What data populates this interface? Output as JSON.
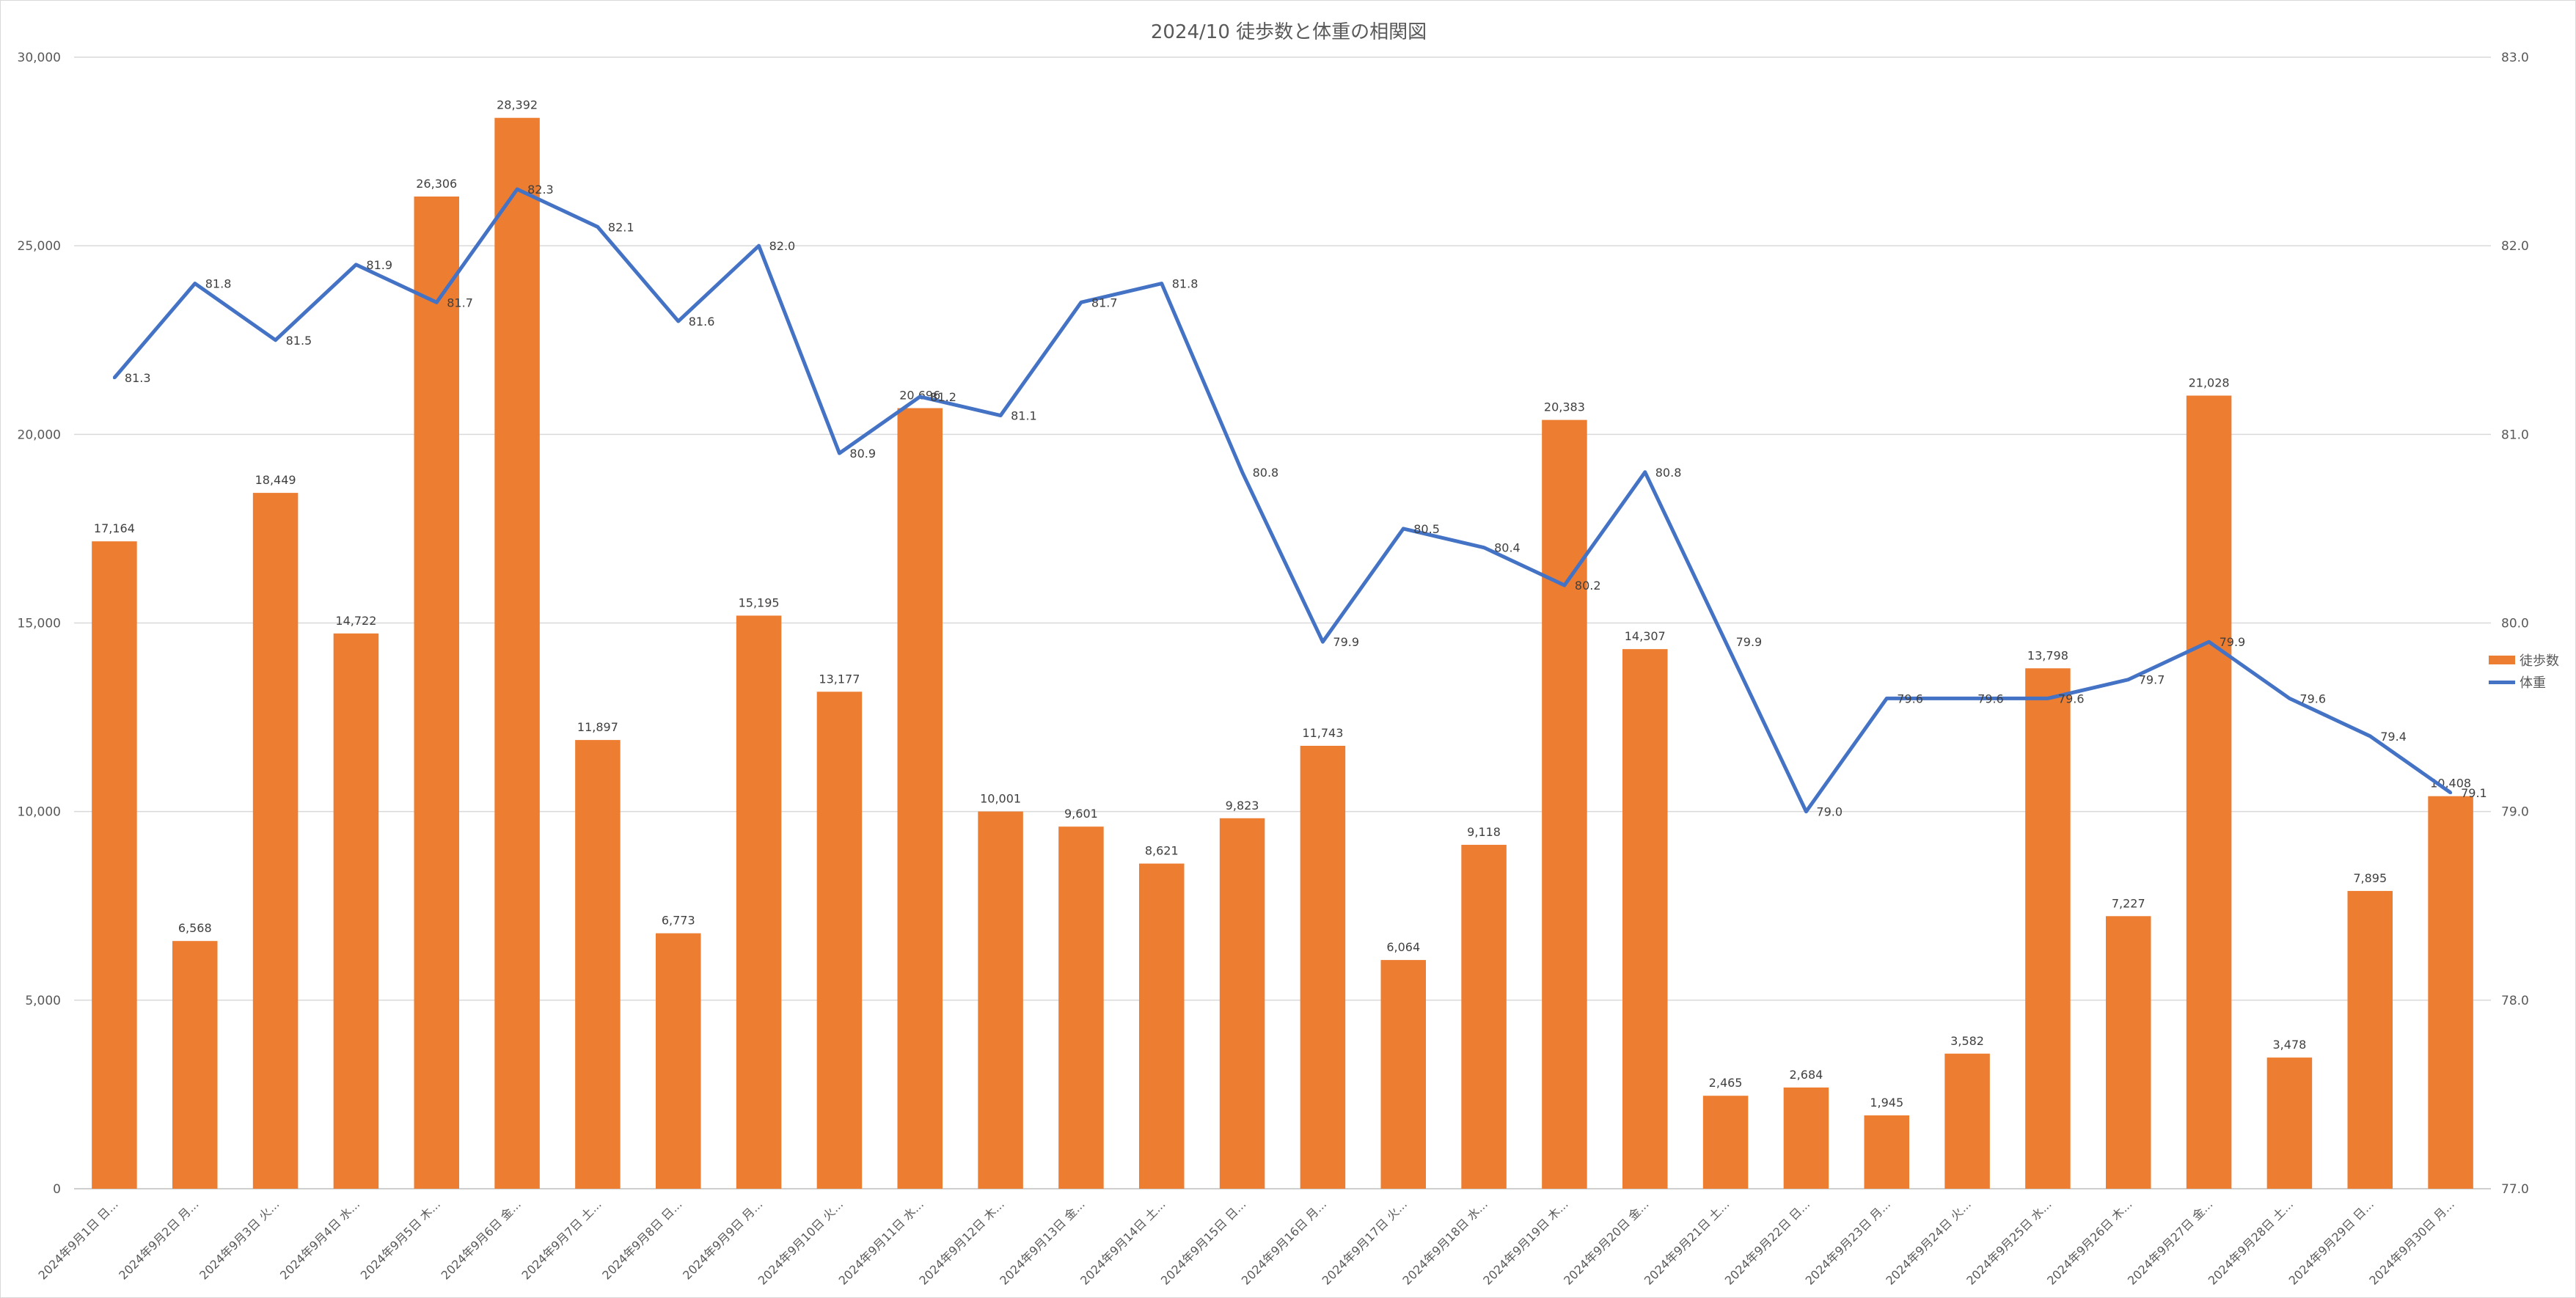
{
  "chart_data": {
    "type": "bar",
    "title": "2024/10 徒歩数と体重の相関図",
    "categories": [
      "2024年9月1日 日...",
      "2024年9月2日 月...",
      "2024年9月3日 火...",
      "2024年9月4日 水...",
      "2024年9月5日 木...",
      "2024年9月6日 金...",
      "2024年9月7日 土...",
      "2024年9月8日 日...",
      "2024年9月9日 月...",
      "2024年9月10日 火...",
      "2024年9月11日 水...",
      "2024年9月12日 木...",
      "2024年9月13日 金...",
      "2024年9月14日 土...",
      "2024年9月15日 日...",
      "2024年9月16日 月...",
      "2024年9月17日 火...",
      "2024年9月18日 水...",
      "2024年9月19日 木...",
      "2024年9月20日 金...",
      "2024年9月21日 土...",
      "2024年9月22日 日...",
      "2024年9月23日 月...",
      "2024年9月24日 火...",
      "2024年9月25日 水...",
      "2024年9月26日 木...",
      "2024年9月27日 金...",
      "2024年9月28日 土...",
      "2024年9月29日 日...",
      "2024年9月30日 月..."
    ],
    "series": [
      {
        "name": "徒歩数",
        "type": "bar",
        "axis": "left",
        "color": "#ED7D31",
        "values": [
          17164,
          6568,
          18449,
          14722,
          26306,
          28392,
          11897,
          6773,
          15195,
          13177,
          20696,
          10001,
          9601,
          8621,
          9823,
          11743,
          6064,
          9118,
          20383,
          14307,
          2465,
          2684,
          1945,
          3582,
          13798,
          7227,
          21028,
          3478,
          7895,
          10408
        ],
        "labels": [
          "17,164",
          "6,568",
          "18,449",
          "14,722",
          "26,306",
          "28,392",
          "11,897",
          "6,773",
          "15,195",
          "13,177",
          "20,696",
          "10,001",
          "9,601",
          "8,621",
          "9,823",
          "11,743",
          "6,064",
          "9,118",
          "20,383",
          "14,307",
          "2,465",
          "2,684",
          "1,945",
          "3,582",
          "13,798",
          "7,227",
          "21,028",
          "3,478",
          "7,895",
          "10,408"
        ]
      },
      {
        "name": "体重",
        "type": "line",
        "axis": "right",
        "color": "#4472C4",
        "values": [
          81.3,
          81.8,
          81.5,
          81.9,
          81.7,
          82.3,
          82.1,
          81.6,
          82.0,
          80.9,
          81.2,
          81.1,
          81.7,
          81.8,
          80.8,
          79.9,
          80.5,
          80.4,
          80.2,
          80.8,
          79.9,
          79.0,
          79.6,
          79.6,
          79.6,
          79.7,
          79.9,
          79.6,
          79.4,
          79.1
        ],
        "labels": [
          "81.3",
          "81.8",
          "81.5",
          "81.9",
          "81.7",
          "82.3",
          "82.1",
          "81.6",
          "82.0",
          "80.9",
          "81.2",
          "81.1",
          "81.7",
          "81.8",
          "80.8",
          "79.9",
          "80.5",
          "80.4",
          "80.2",
          "80.8",
          "79.9",
          "79.0",
          "79.6",
          "79.6",
          "79.6",
          "79.7",
          "79.9",
          "79.6",
          "79.4",
          "79.1"
        ]
      }
    ],
    "y_left": {
      "lim": [
        0,
        30000
      ],
      "ticks": [
        0,
        5000,
        10000,
        15000,
        20000,
        25000,
        30000
      ],
      "tick_labels": [
        "0",
        "5,000",
        "10,000",
        "15,000",
        "20,000",
        "25,000",
        "30,000"
      ]
    },
    "y_right": {
      "lim": [
        77.0,
        83.0
      ],
      "ticks": [
        77,
        78,
        79,
        80,
        81,
        82,
        83
      ],
      "tick_labels": [
        "77.0",
        "78.0",
        "79.0",
        "80.0",
        "81.0",
        "82.0",
        "83.0"
      ]
    },
    "grid": true,
    "legend": "right"
  }
}
